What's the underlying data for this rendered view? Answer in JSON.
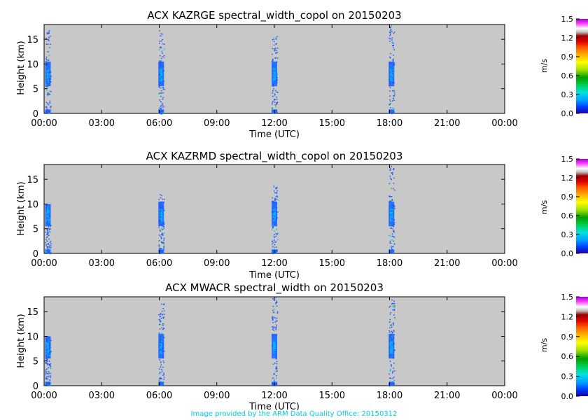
{
  "footer": "Image provided by the ARM Data Quality Office: 20150312",
  "colors": {
    "background": "#c8c8c8",
    "colormap": [
      "#1e00a0",
      "#0040ff",
      "#00a0ff",
      "#00e0e0",
      "#00d050",
      "#00a000",
      "#a0e000",
      "#ffff00",
      "#ffb000",
      "#ff6000",
      "#e00000",
      "#a00000",
      "#c0c0c0",
      "#ffffff",
      "#ff40ff",
      "#a000d0"
    ]
  },
  "chart_data": [
    {
      "type": "heatmap",
      "title": "ACX KAZRGE spectral_width_copol on 20150203",
      "xlabel": "Time (UTC)",
      "ylabel": "Height (km)",
      "x_ticks": [
        "00:00",
        "03:00",
        "06:00",
        "09:00",
        "12:00",
        "15:00",
        "18:00",
        "21:00",
        "00:00"
      ],
      "y_ticks": [
        "0",
        "5",
        "10",
        "15"
      ],
      "xlim_hours": [
        0,
        24
      ],
      "ylim_km": [
        0,
        18
      ],
      "colorbar": {
        "label": "m/s",
        "ticks": [
          "0.0",
          "0.3",
          "0.6",
          "0.9",
          "1.2",
          "1.5"
        ],
        "range": [
          0,
          1.5
        ]
      },
      "data_bursts": [
        {
          "time_hour": 0.2,
          "height_km": [
            0,
            17
          ]
        },
        {
          "time_hour": 6.1,
          "height_km": [
            0,
            17
          ]
        },
        {
          "time_hour": 12.0,
          "height_km": [
            0,
            16
          ]
        },
        {
          "time_hour": 18.1,
          "height_km": [
            0,
            18
          ]
        }
      ]
    },
    {
      "type": "heatmap",
      "title": "ACX KAZRMD spectral_width_copol on 20150203",
      "xlabel": "Time (UTC)",
      "ylabel": "Height (km)",
      "x_ticks": [
        "00:00",
        "03:00",
        "06:00",
        "09:00",
        "12:00",
        "15:00",
        "18:00",
        "21:00",
        "00:00"
      ],
      "y_ticks": [
        "0",
        "5",
        "10",
        "15"
      ],
      "xlim_hours": [
        0,
        24
      ],
      "ylim_km": [
        0,
        18
      ],
      "colorbar": {
        "label": "m/s",
        "ticks": [
          "0.0",
          "0.3",
          "0.6",
          "0.9",
          "1.2",
          "1.5"
        ],
        "range": [
          0,
          1.5
        ]
      },
      "data_bursts": [
        {
          "time_hour": 0.2,
          "height_km": [
            0,
            10
          ]
        },
        {
          "time_hour": 6.1,
          "height_km": [
            0,
            12
          ]
        },
        {
          "time_hour": 12.0,
          "height_km": [
            0,
            14
          ]
        },
        {
          "time_hour": 18.1,
          "height_km": [
            0,
            18
          ]
        }
      ]
    },
    {
      "type": "heatmap",
      "title": "ACX MWACR spectral_width on 20150203",
      "xlabel": "Time (UTC)",
      "ylabel": "Height (km)",
      "x_ticks": [
        "00:00",
        "03:00",
        "06:00",
        "09:00",
        "12:00",
        "15:00",
        "18:00",
        "21:00",
        "00:00"
      ],
      "y_ticks": [
        "0",
        "5",
        "10",
        "15"
      ],
      "xlim_hours": [
        0,
        24
      ],
      "ylim_km": [
        0,
        18
      ],
      "colorbar": {
        "label": "m/s",
        "ticks": [
          "0.0",
          "0.3",
          "0.6",
          "0.9",
          "1.2",
          "1.5"
        ],
        "range": [
          0,
          1.5
        ]
      },
      "data_bursts": [
        {
          "time_hour": 0.2,
          "height_km": [
            0,
            10
          ]
        },
        {
          "time_hour": 6.1,
          "height_km": [
            0,
            17
          ]
        },
        {
          "time_hour": 12.0,
          "height_km": [
            0,
            18
          ]
        },
        {
          "time_hour": 18.1,
          "height_km": [
            0,
            18
          ]
        }
      ]
    }
  ]
}
